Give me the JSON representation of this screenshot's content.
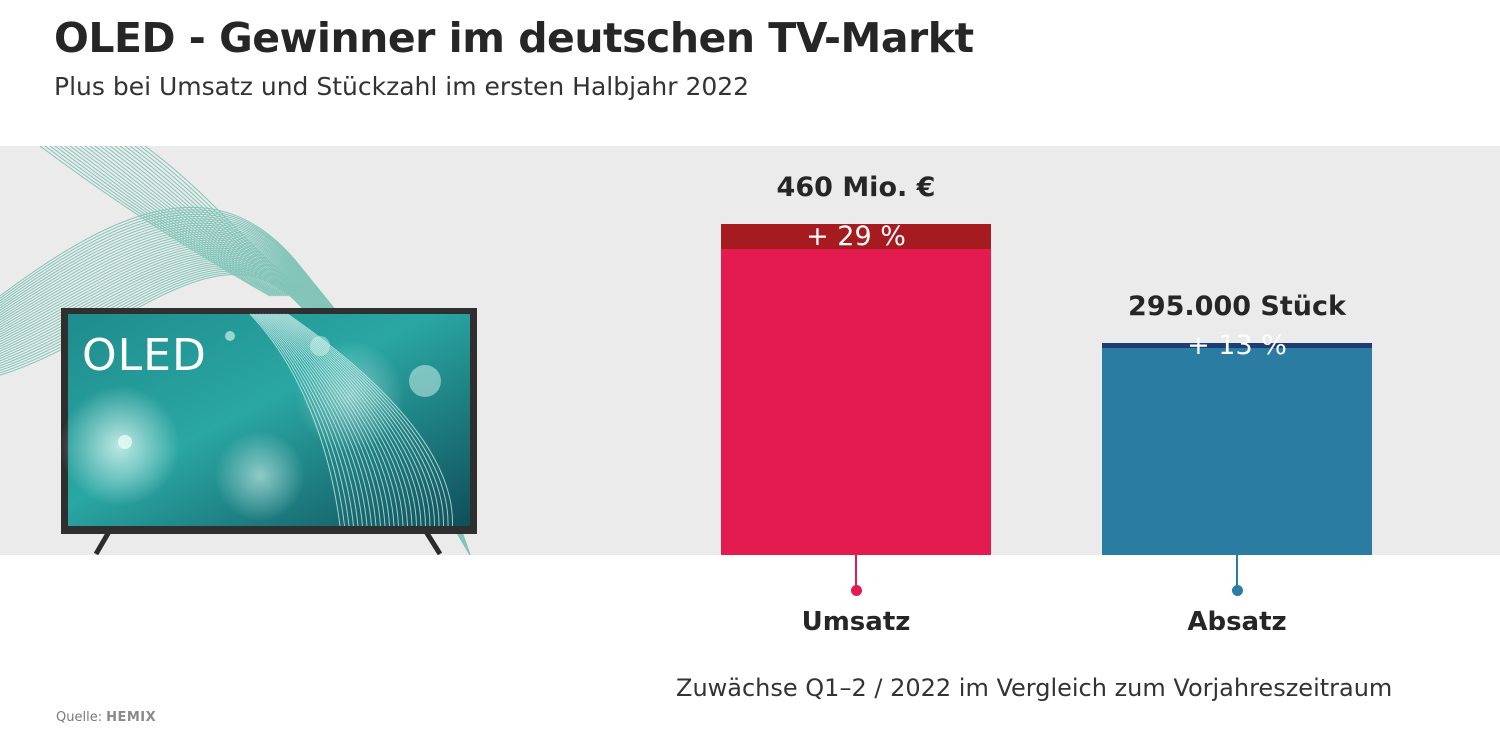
{
  "header": {
    "title": "OLED - Gewinner im deutschen TV-Markt",
    "subtitle": "Plus bei Umsatz und Stückzahl im ersten Halbjahr 2022"
  },
  "illustration": {
    "tv_screen_text": "OLED"
  },
  "chart_data": {
    "type": "bar",
    "categories": [
      "Umsatz",
      "Absatz"
    ],
    "value_labels": [
      "460 Mio. €",
      "295.000 Stück"
    ],
    "increase_labels": [
      "+ 29 %",
      "+ 13 %"
    ],
    "increase_percent": [
      29,
      13
    ],
    "relative_heights": [
      1.0,
      0.64
    ],
    "colors": {
      "Umsatz": {
        "base": "#e31b4e",
        "increase": "#a61b1f"
      },
      "Absatz": {
        "base": "#2a7ca3",
        "increase": "#1d3e74"
      }
    },
    "title": "OLED - Gewinner im deutschen TV-Markt",
    "subtitle": "Plus bei Umsatz und Stückzahl im ersten Halbjahr 2022"
  },
  "footer": {
    "note": "Zuwächse Q1–2 / 2022 im Vergleich zum Vorjahreszeitraum",
    "source_prefix": "Quelle:",
    "source_brand": "HEMIX"
  }
}
